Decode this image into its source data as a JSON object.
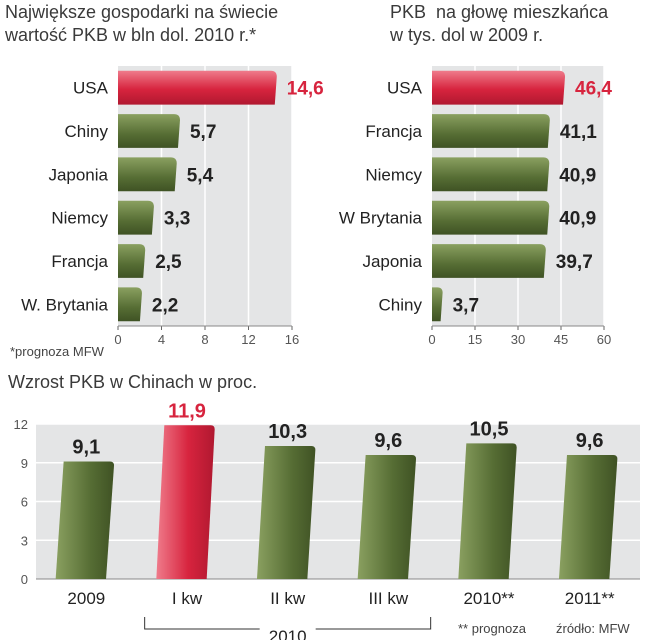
{
  "chart_data": [
    {
      "type": "bar",
      "orientation": "horizontal",
      "title": "Największe gospodarki na świecie",
      "subtitle": "wartość PKB w bln dol. 2010 r.*",
      "categories": [
        "USA",
        "Chiny",
        "Japonia",
        "Niemcy",
        "Francja",
        "W. Brytania"
      ],
      "values": [
        14.6,
        5.7,
        5.4,
        3.3,
        2.5,
        2.2
      ],
      "value_labels": [
        "14,6",
        "5,7",
        "5,4",
        "3,3",
        "2,5",
        "2,2"
      ],
      "highlight": [
        true,
        false,
        false,
        false,
        false,
        false
      ],
      "xlim": [
        0,
        16
      ],
      "xticks": [
        0,
        4,
        8,
        12,
        16
      ],
      "footnote": "*prognoza MFW"
    },
    {
      "type": "bar",
      "orientation": "horizontal",
      "title": "PKB  na głowę mieszkańca",
      "subtitle": "w tys. dol w 2009 r.",
      "categories": [
        "USA",
        "Francja",
        "Niemcy",
        "W Brytania",
        "Japonia",
        "Chiny"
      ],
      "values": [
        46.4,
        41.1,
        40.9,
        40.9,
        39.7,
        3.7
      ],
      "value_labels": [
        "46,4",
        "41,1",
        "40,9",
        "40,9",
        "39,7",
        "3,7"
      ],
      "highlight": [
        true,
        false,
        false,
        false,
        false,
        false
      ],
      "xlim": [
        0,
        60
      ],
      "xticks": [
        0,
        15,
        30,
        45,
        60
      ]
    },
    {
      "type": "bar",
      "orientation": "vertical",
      "title": "Wzrost PKB w Chinach w proc.",
      "categories": [
        "2009",
        "I kw",
        "II kw",
        "III kw",
        "2010**",
        "2011**"
      ],
      "values": [
        9.1,
        11.9,
        10.3,
        9.6,
        10.5,
        9.6
      ],
      "value_labels": [
        "9,1",
        "11,9",
        "10,3",
        "9,6",
        "10,5",
        "9,6"
      ],
      "highlight": [
        false,
        true,
        false,
        false,
        false,
        false
      ],
      "ylim": [
        0,
        12
      ],
      "yticks": [
        0,
        3,
        6,
        9,
        12
      ],
      "group_label": "2010",
      "footnote": "** prognoza",
      "source": "źródło: MFW"
    }
  ],
  "colors": {
    "accent": "#d7243e",
    "accent_light": "#ef7b8b",
    "bar": "#566d34",
    "bar_light": "#8aa060",
    "panel": "#e4e5e6",
    "text": "#222222",
    "muted": "#555555"
  }
}
